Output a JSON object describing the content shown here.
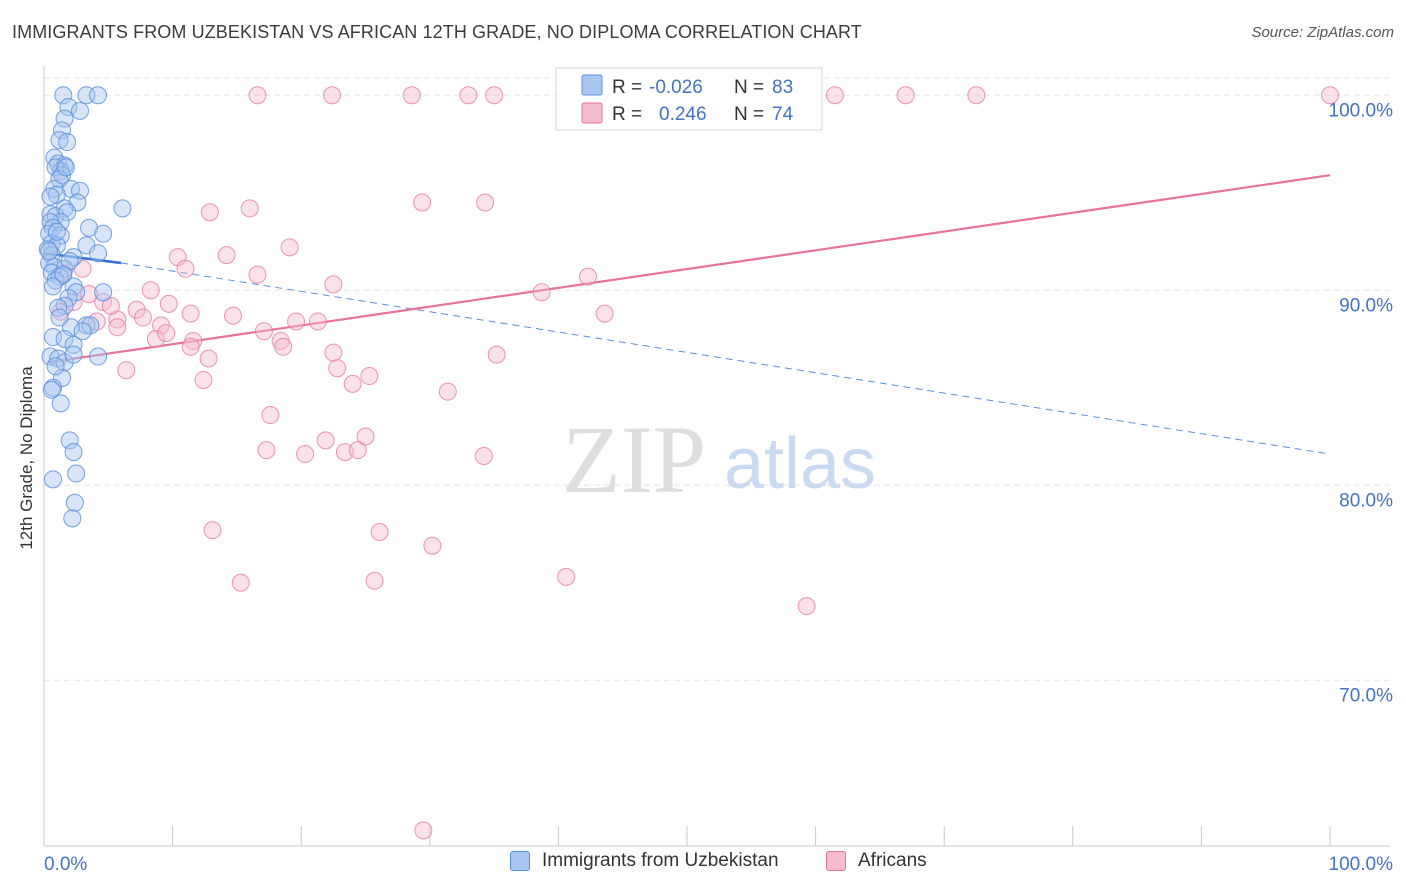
{
  "title": "IMMIGRANTS FROM UZBEKISTAN VS AFRICAN 12TH GRADE, NO DIPLOMA CORRELATION CHART",
  "source": "Source: ZipAtlas.com",
  "watermark": {
    "zip": "ZIP",
    "atlas": "atlas"
  },
  "colors": {
    "blue": "#5b8fdc",
    "blue_fill": "#a9c6f0",
    "pink": "#e8729a",
    "pink_fill": "#f5bcd0",
    "axis_text": "#4472c4"
  },
  "legend_top": {
    "rows": [
      {
        "r_label": "R = ",
        "r_value": "-0.026",
        "n_label": "N = ",
        "n_value": "83"
      },
      {
        "r_label": "R = ",
        "r_value": "0.246",
        "n_label": "N = ",
        "n_value": "74"
      }
    ]
  },
  "legend_bottom": [
    "Immigrants from Uzbekistan",
    "Africans"
  ],
  "chart_data": {
    "type": "scatter",
    "title": "IMMIGRANTS FROM UZBEKISTAN VS AFRICAN 12TH GRADE, NO DIPLOMA CORRELATION CHART",
    "xlabel": "",
    "ylabel": "12th Grade, No Diploma",
    "xlim": [
      0,
      100
    ],
    "ylim": [
      61.5,
      101.5
    ],
    "x_tick_labels": [
      "0.0%",
      "100.0%"
    ],
    "y_ticks": [
      70,
      80,
      90,
      100
    ],
    "y_tick_labels": [
      "70.0%",
      "80.0%",
      "90.0%",
      "100.0%"
    ],
    "grid": true,
    "legend_position": "top-center",
    "series": [
      {
        "name": "Immigrants from Uzbekistan",
        "r": -0.026,
        "n": 83,
        "trend_solid": [
          [
            0.0,
            91.9
          ],
          [
            6.0,
            91.4
          ]
        ],
        "trend_dashed": [
          [
            6.0,
            91.4
          ],
          [
            100.0,
            81.6
          ]
        ],
        "points": [
          [
            1.5,
            100.0
          ],
          [
            3.3,
            100.0
          ],
          [
            4.2,
            100.0
          ],
          [
            1.9,
            99.4
          ],
          [
            2.8,
            99.2
          ],
          [
            1.6,
            98.8
          ],
          [
            1.4,
            98.2
          ],
          [
            1.2,
            97.7
          ],
          [
            1.8,
            97.6
          ],
          [
            0.8,
            96.8
          ],
          [
            1.1,
            96.5
          ],
          [
            1.6,
            96.4
          ],
          [
            1.3,
            96.1
          ],
          [
            0.9,
            96.3
          ],
          [
            1.4,
            95.9
          ],
          [
            1.2,
            95.7
          ],
          [
            0.8,
            95.2
          ],
          [
            2.1,
            95.2
          ],
          [
            2.8,
            95.1
          ],
          [
            1.0,
            94.9
          ],
          [
            2.6,
            94.5
          ],
          [
            1.6,
            94.2
          ],
          [
            6.1,
            94.2
          ],
          [
            0.5,
            93.9
          ],
          [
            0.9,
            93.8
          ],
          [
            1.8,
            94.0
          ],
          [
            1.3,
            93.5
          ],
          [
            0.5,
            93.5
          ],
          [
            0.7,
            93.2
          ],
          [
            3.5,
            93.2
          ],
          [
            0.4,
            92.9
          ],
          [
            1.3,
            92.8
          ],
          [
            4.6,
            92.9
          ],
          [
            0.6,
            92.4
          ],
          [
            1.0,
            92.3
          ],
          [
            3.3,
            92.3
          ],
          [
            0.3,
            92.1
          ],
          [
            0.6,
            91.8
          ],
          [
            2.3,
            91.7
          ],
          [
            4.2,
            91.9
          ],
          [
            0.4,
            91.4
          ],
          [
            0.8,
            91.2
          ],
          [
            1.6,
            91.1
          ],
          [
            0.6,
            90.9
          ],
          [
            1.2,
            90.7
          ],
          [
            0.9,
            90.5
          ],
          [
            2.3,
            90.2
          ],
          [
            2.5,
            89.9
          ],
          [
            4.6,
            89.9
          ],
          [
            1.9,
            89.6
          ],
          [
            1.6,
            89.2
          ],
          [
            1.1,
            89.1
          ],
          [
            3.3,
            88.2
          ],
          [
            3.6,
            88.2
          ],
          [
            2.1,
            88.1
          ],
          [
            0.7,
            87.6
          ],
          [
            1.6,
            87.5
          ],
          [
            2.3,
            87.2
          ],
          [
            4.2,
            86.6
          ],
          [
            0.5,
            86.6
          ],
          [
            1.1,
            86.5
          ],
          [
            1.6,
            86.3
          ],
          [
            2.3,
            86.7
          ],
          [
            1.4,
            85.5
          ],
          [
            0.7,
            85.0
          ],
          [
            0.6,
            84.9
          ],
          [
            2.0,
            82.3
          ],
          [
            2.3,
            81.7
          ],
          [
            2.5,
            80.6
          ],
          [
            0.7,
            80.3
          ],
          [
            2.4,
            79.1
          ],
          [
            2.2,
            78.3
          ],
          [
            1.7,
            96.3
          ],
          [
            0.5,
            94.8
          ],
          [
            1.0,
            93.0
          ],
          [
            0.4,
            92.0
          ],
          [
            2.0,
            91.5
          ],
          [
            1.5,
            90.8
          ],
          [
            0.7,
            90.2
          ],
          [
            1.2,
            88.6
          ],
          [
            3.0,
            87.9
          ],
          [
            0.9,
            86.1
          ],
          [
            1.3,
            84.2
          ]
        ]
      },
      {
        "name": "Africans",
        "r": 0.246,
        "n": 74,
        "trend": [
          [
            0.3,
            86.3
          ],
          [
            100.0,
            95.9
          ]
        ],
        "points": [
          [
            16.6,
            100.0
          ],
          [
            22.4,
            100.0
          ],
          [
            28.6,
            100.0
          ],
          [
            33.0,
            100.0
          ],
          [
            35.0,
            100.0
          ],
          [
            52.3,
            100.0
          ],
          [
            61.5,
            100.0
          ],
          [
            67.0,
            100.0
          ],
          [
            72.5,
            100.0
          ],
          [
            100.0,
            100.0
          ],
          [
            34.3,
            94.5
          ],
          [
            29.4,
            94.5
          ],
          [
            16.0,
            94.2
          ],
          [
            12.9,
            94.0
          ],
          [
            19.1,
            92.2
          ],
          [
            14.2,
            91.8
          ],
          [
            10.4,
            91.7
          ],
          [
            11.0,
            91.1
          ],
          [
            22.5,
            90.3
          ],
          [
            8.3,
            90.0
          ],
          [
            16.6,
            90.8
          ],
          [
            42.3,
            90.7
          ],
          [
            38.7,
            89.9
          ],
          [
            3.5,
            89.8
          ],
          [
            2.3,
            89.4
          ],
          [
            4.6,
            89.4
          ],
          [
            7.2,
            89.0
          ],
          [
            9.7,
            89.3
          ],
          [
            11.4,
            88.8
          ],
          [
            14.7,
            88.7
          ],
          [
            43.6,
            88.8
          ],
          [
            5.7,
            88.5
          ],
          [
            4.1,
            88.4
          ],
          [
            19.6,
            88.4
          ],
          [
            21.3,
            88.4
          ],
          [
            9.1,
            88.2
          ],
          [
            5.7,
            88.1
          ],
          [
            17.1,
            87.9
          ],
          [
            8.7,
            87.5
          ],
          [
            11.6,
            87.4
          ],
          [
            18.4,
            87.4
          ],
          [
            11.4,
            87.1
          ],
          [
            18.6,
            87.1
          ],
          [
            22.5,
            86.8
          ],
          [
            35.2,
            86.7
          ],
          [
            6.4,
            85.9
          ],
          [
            22.8,
            86.0
          ],
          [
            12.4,
            85.4
          ],
          [
            25.3,
            85.6
          ],
          [
            31.4,
            84.8
          ],
          [
            17.6,
            83.6
          ],
          [
            21.9,
            82.3
          ],
          [
            25.0,
            82.5
          ],
          [
            17.3,
            81.8
          ],
          [
            20.3,
            81.6
          ],
          [
            23.4,
            81.7
          ],
          [
            24.4,
            81.8
          ],
          [
            34.2,
            81.5
          ],
          [
            13.1,
            77.7
          ],
          [
            26.1,
            77.6
          ],
          [
            30.2,
            76.9
          ],
          [
            15.3,
            75.0
          ],
          [
            25.7,
            75.1
          ],
          [
            40.6,
            75.3
          ],
          [
            59.3,
            73.8
          ],
          [
            29.5,
            62.3
          ],
          [
            1.5,
            90.9
          ],
          [
            3.0,
            91.1
          ],
          [
            5.2,
            89.2
          ],
          [
            9.5,
            87.8
          ],
          [
            12.8,
            86.5
          ],
          [
            24.0,
            85.2
          ],
          [
            7.7,
            88.6
          ],
          [
            1.3,
            88.9
          ]
        ]
      }
    ]
  }
}
